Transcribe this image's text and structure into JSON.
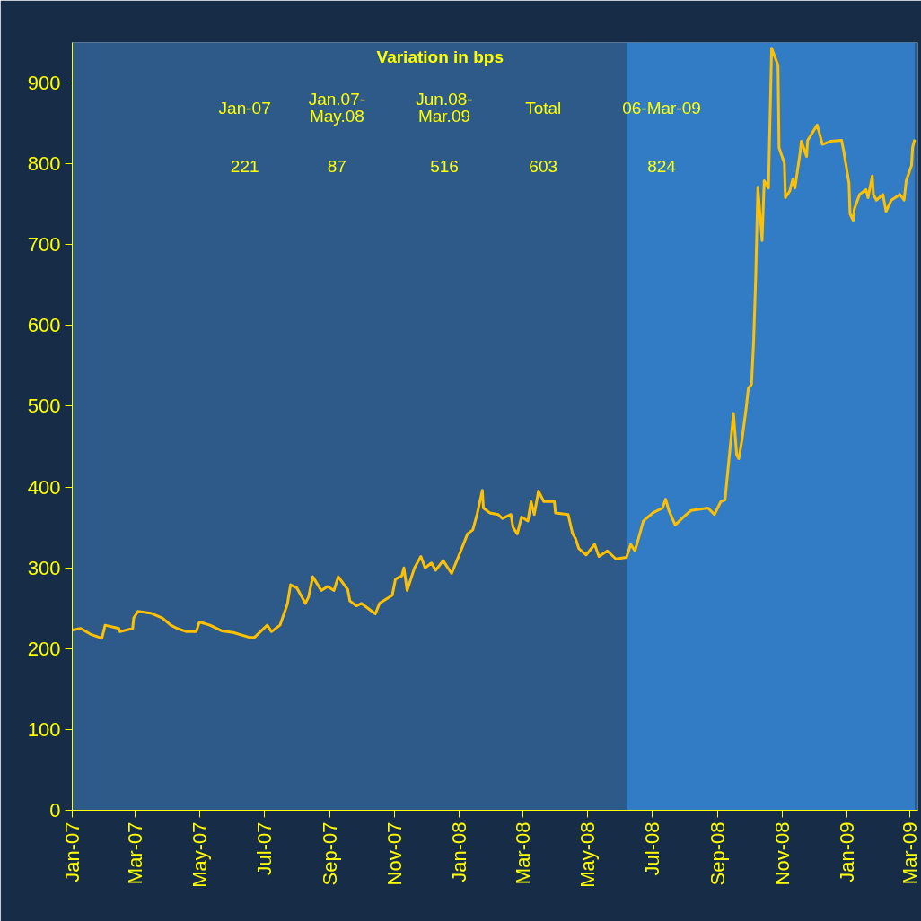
{
  "chart_data": {
    "type": "line",
    "annotations": [
      "Variation in bps",
      "Jan-07",
      "Jan.07-\nMay.08",
      "Jun.08-\nMar.09",
      "Total",
      "06-Mar-09",
      "221",
      "87",
      "516",
      "603",
      "824"
    ],
    "x": [
      "2007-01-01",
      "2007-01-09",
      "2007-01-18",
      "2007-01-29",
      "2007-02-01",
      "2007-02-14",
      "2007-02-15",
      "2007-02-27",
      "2007-02-28",
      "2007-03-04",
      "2007-03-16",
      "2007-03-27",
      "2007-04-04",
      "2007-04-10",
      "2007-04-19",
      "2007-04-28",
      "2007-05-01",
      "2007-05-11",
      "2007-05-22",
      "2007-06-02",
      "2007-06-17",
      "2007-06-22",
      "2007-07-04",
      "2007-07-08",
      "2007-07-16",
      "2007-07-23",
      "2007-07-26",
      "2007-08-01",
      "2007-08-09",
      "2007-08-12",
      "2007-08-16",
      "2007-08-24",
      "2007-08-30",
      "2007-09-05",
      "2007-09-09",
      "2007-09-18",
      "2007-09-20",
      "2007-09-26",
      "2007-10-01",
      "2007-10-10",
      "2007-10-14",
      "2007-10-18",
      "2007-10-30",
      "2007-11-02",
      "2007-11-08",
      "2007-11-10",
      "2007-11-13",
      "2007-11-16",
      "2007-11-20",
      "2007-11-26",
      "2007-11-30",
      "2007-12-06",
      "2007-12-10",
      "2007-12-17",
      "2007-12-25",
      "2008-01-03",
      "2008-01-09",
      "2008-01-14",
      "2008-01-18",
      "2008-01-23",
      "2008-01-24",
      "2008-01-30",
      "2008-02-07",
      "2008-02-11",
      "2008-02-19",
      "2008-02-21",
      "2008-02-25",
      "2008-02-29",
      "2008-03-06",
      "2008-03-09",
      "2008-03-12",
      "2008-03-16",
      "2008-03-21",
      "2008-03-31",
      "2008-04-01",
      "2008-04-13",
      "2008-04-17",
      "2008-04-20",
      "2008-04-23",
      "2008-04-30",
      "2008-05-08",
      "2008-05-12",
      "2008-05-20",
      "2008-05-28",
      "2008-06-07",
      "2008-06-11",
      "2008-06-15",
      "2008-06-17",
      "2008-06-23",
      "2008-07-02",
      "2008-07-11",
      "2008-07-14",
      "2008-07-17",
      "2008-07-23",
      "2008-07-31",
      "2008-08-07",
      "2008-08-23",
      "2008-08-29",
      "2008-09-04",
      "2008-09-08",
      "2008-09-10",
      "2008-09-16",
      "2008-09-19",
      "2008-09-21",
      "2008-09-24",
      "2008-09-28",
      "2008-09-30",
      "2008-10-03",
      "2008-10-05",
      "2008-10-07",
      "2008-10-09",
      "2008-10-13",
      "2008-10-15",
      "2008-10-19",
      "2008-10-22",
      "2008-10-28",
      "2008-10-29",
      "2008-11-03",
      "2008-11-04",
      "2008-11-08",
      "2008-11-11",
      "2008-11-13",
      "2008-11-18",
      "2008-11-19",
      "2008-11-24",
      "2008-11-25",
      "2008-12-04",
      "2008-12-09",
      "2008-12-17",
      "2008-12-27",
      "2008-12-29",
      "2009-01-03",
      "2009-01-04",
      "2009-01-07",
      "2009-01-08",
      "2009-01-13",
      "2009-01-19",
      "2009-01-21",
      "2009-01-25",
      "2009-01-26",
      "2009-01-29",
      "2009-02-04",
      "2009-02-07",
      "2009-02-12",
      "2009-02-20",
      "2009-02-24",
      "2009-02-26",
      "2009-03-03",
      "2009-03-04",
      "2009-03-06"
    ],
    "series": [
      {
        "color": "#ffc000",
        "values": [
          223,
          225,
          218,
          213,
          229,
          225,
          221,
          225,
          238,
          246,
          244,
          238,
          229,
          225,
          221,
          221,
          233,
          229,
          222,
          220,
          214,
          214,
          229,
          221,
          229,
          255,
          279,
          275,
          256,
          264,
          289,
          272,
          277,
          272,
          289,
          273,
          259,
          253,
          256,
          247,
          243,
          256,
          266,
          286,
          290,
          300,
          272,
          284,
          300,
          314,
          300,
          306,
          297,
          309,
          293,
          322,
          342,
          347,
          366,
          396,
          374,
          368,
          366,
          361,
          366,
          350,
          342,
          363,
          358,
          382,
          366,
          395,
          382,
          382,
          368,
          366,
          343,
          336,
          324,
          316,
          329,
          314,
          321,
          311,
          313,
          329,
          321,
          330,
          358,
          368,
          374,
          385,
          371,
          353,
          363,
          371,
          374,
          366,
          382,
          384,
          411,
          491,
          440,
          435,
          458,
          498,
          522,
          527,
          580,
          660,
          771,
          705,
          779,
          770,
          943,
          922,
          820,
          801,
          758,
          766,
          781,
          770,
          815,
          828,
          809,
          829,
          848,
          824,
          828,
          829,
          816,
          776,
          738,
          730,
          744,
          762,
          768,
          758,
          785,
          762,
          755,
          762,
          741,
          755,
          762,
          755,
          779,
          798,
          820,
          830
        ]
      }
    ],
    "xlim": [
      "2007-01-01",
      "2009-03-09"
    ],
    "xticks": [
      {
        "value": "2007-01-01",
        "label": "Jan-07"
      },
      {
        "value": "2007-03-01",
        "label": "Mar-07"
      },
      {
        "value": "2007-05-01",
        "label": "May-07"
      },
      {
        "value": "2007-07-01",
        "label": "Jul-07"
      },
      {
        "value": "2007-09-01",
        "label": "Sep-07"
      },
      {
        "value": "2007-11-01",
        "label": "Nov-07"
      },
      {
        "value": "2008-01-01",
        "label": "Jan-08"
      },
      {
        "value": "2008-03-01",
        "label": "Mar-08"
      },
      {
        "value": "2008-05-01",
        "label": "May-08"
      },
      {
        "value": "2008-07-01",
        "label": "Jul-08"
      },
      {
        "value": "2008-09-01",
        "label": "Sep-08"
      },
      {
        "value": "2008-11-01",
        "label": "Nov-08"
      },
      {
        "value": "2009-01-01",
        "label": "Jan-09"
      },
      {
        "value": "2009-03-01",
        "label": "Mar-09"
      }
    ],
    "ylim": [
      0,
      950
    ],
    "yticks": [
      0,
      100,
      200,
      300,
      400,
      500,
      600,
      700,
      800,
      900
    ],
    "bands": [
      {
        "axis": "x",
        "from": "2008-06-07",
        "to": "2009-03-06",
        "color": "#3380cc"
      }
    ],
    "grid": false,
    "marker": "none",
    "line_style": "solid"
  }
}
